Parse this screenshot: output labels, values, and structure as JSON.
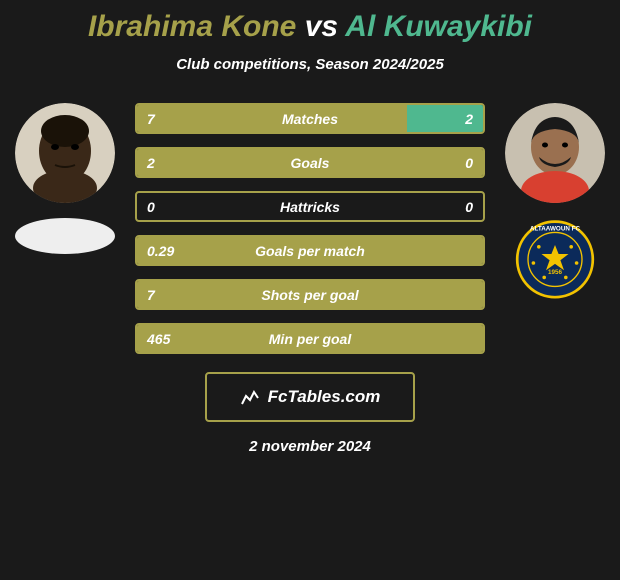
{
  "title": {
    "player1": "Ibrahima Kone",
    "vs": "vs",
    "player2": "Al Kuwaykibi",
    "player1_color": "#a6a14a",
    "vs_color": "#ffffff",
    "player2_color": "#4fb88f"
  },
  "subtitle": "Club competitions, Season 2024/2025",
  "colors": {
    "player1_bar": "#a6a14a",
    "player2_bar": "#4fb88f",
    "border": "#a6a14a",
    "background": "#1a1a1a"
  },
  "stats": [
    {
      "label": "Matches",
      "left_val": "7",
      "right_val": "2",
      "left_pct": 78,
      "right_pct": 22
    },
    {
      "label": "Goals",
      "left_val": "2",
      "right_val": "0",
      "left_pct": 100,
      "right_pct": 0
    },
    {
      "label": "Hattricks",
      "left_val": "0",
      "right_val": "0",
      "left_pct": 0,
      "right_pct": 0
    },
    {
      "label": "Goals per match",
      "left_val": "0.29",
      "right_val": "",
      "left_pct": 100,
      "right_pct": 0
    },
    {
      "label": "Shots per goal",
      "left_val": "7",
      "right_val": "",
      "left_pct": 100,
      "right_pct": 0
    },
    {
      "label": "Min per goal",
      "left_val": "465",
      "right_val": "",
      "left_pct": 100,
      "right_pct": 0
    }
  ],
  "footer": {
    "brand": "FcTables.com",
    "date": "2 november 2024"
  },
  "club_right": {
    "name": "ALTAAWOUN FC",
    "year": "1956",
    "bg": "#0b2a5a",
    "accent": "#f2c200"
  }
}
